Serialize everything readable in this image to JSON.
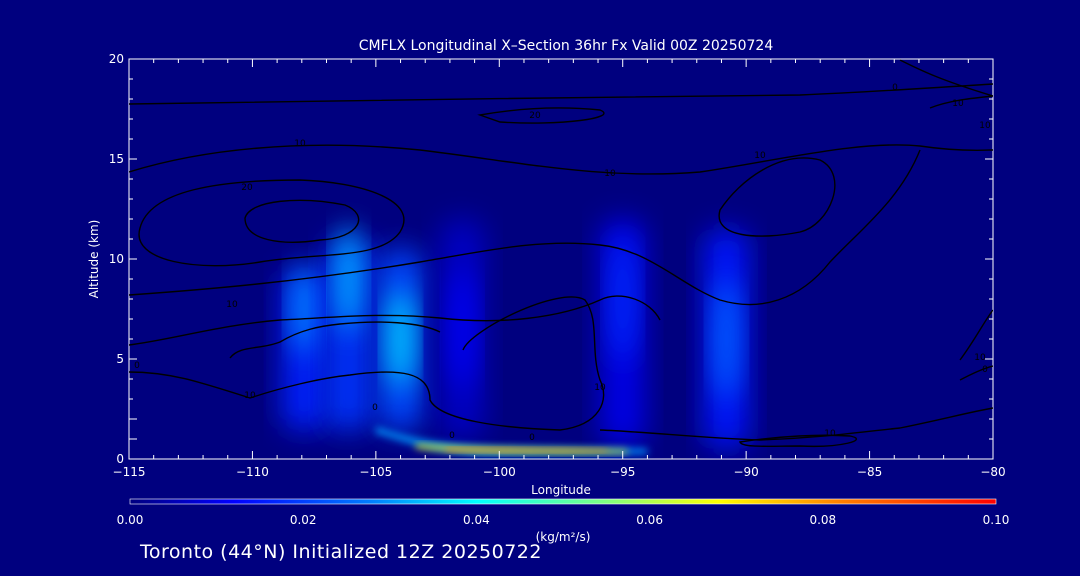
{
  "chart_data": {
    "type": "heatmap",
    "title": "CMFLX Longitudinal X–Section 36hr  Fx Valid 00Z 20250724",
    "xlabel": "Longitude",
    "ylabel": "Altitude (km)",
    "xlim": [
      -115,
      -80
    ],
    "ylim": [
      0,
      20
    ],
    "xticks": [
      -115,
      -110,
      -105,
      -100,
      -95,
      -90,
      -85,
      -80
    ],
    "xtick_labels": [
      "−115",
      "−110",
      "−105",
      "−100",
      "−95",
      "−90",
      "−85",
      "−80"
    ],
    "yticks": [
      0,
      5,
      10,
      15,
      20
    ],
    "ytick_labels": [
      "0",
      "5",
      "10",
      "15",
      "20"
    ],
    "colorbar": {
      "min": 0.0,
      "max": 0.1,
      "tick_values": [
        0.0,
        0.02,
        0.04,
        0.06,
        0.08,
        0.1
      ],
      "tick_labels": [
        "0.00",
        "0.02",
        "0.04",
        "0.06",
        "0.08",
        "0.10"
      ],
      "units": "(kg/m²/s)"
    },
    "flux_cells": [
      {
        "lon": -107.9,
        "alt_min": 1.4,
        "alt_max": 9.5,
        "peak_alt": 7.5,
        "value": 0.03
      },
      {
        "lon": -106.1,
        "alt_min": 1.4,
        "alt_max": 11.0,
        "peak_alt": 9.0,
        "value": 0.034
      },
      {
        "lon": -104.0,
        "alt_min": 1.4,
        "alt_max": 10.5,
        "peak_alt": 6.0,
        "value": 0.038
      },
      {
        "lon": -101.5,
        "alt_min": 1.0,
        "alt_max": 12.0,
        "peak_alt": 6.5,
        "value": 0.012
      },
      {
        "lon": -95.0,
        "alt_min": 0.6,
        "alt_max": 12.0,
        "peak_alt": 8.0,
        "value": 0.018
      },
      {
        "lon": -90.8,
        "alt_min": 0.5,
        "alt_max": 11.5,
        "peak_alt": 6.0,
        "value": 0.026
      }
    ],
    "surface_band": {
      "lon_start": -105,
      "lon_end": -94,
      "alt_top": 1.4,
      "alt_bottom": 0.4,
      "max_value": 0.068
    },
    "contour_labels": [
      "10",
      "20",
      "10",
      "20",
      "10",
      "0",
      "10",
      "10",
      "10",
      "0",
      "10",
      "0",
      "0",
      "0",
      "10",
      "0",
      "10",
      "10"
    ]
  },
  "footer": "Toronto (44°N) Initialized 12Z 20250722"
}
